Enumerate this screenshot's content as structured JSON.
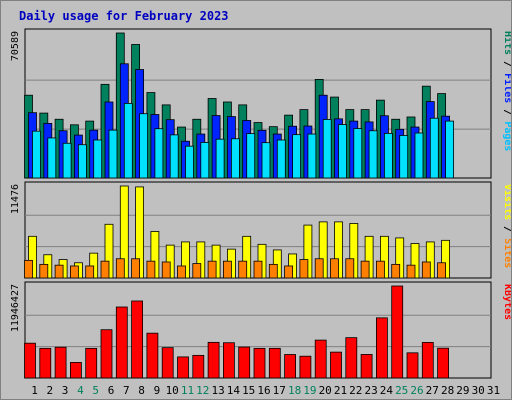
{
  "chart_data": [
    {
      "type": "bar",
      "title": "Daily usage for February 2023",
      "categories": [
        "1",
        "2",
        "3",
        "4",
        "5",
        "6",
        "7",
        "8",
        "9",
        "10",
        "11",
        "12",
        "13",
        "14",
        "15",
        "16",
        "17",
        "18",
        "19",
        "20",
        "21",
        "22",
        "23",
        "24",
        "25",
        "26",
        "27",
        "28",
        "29",
        "30",
        "31"
      ],
      "weekend_categories": [
        "4",
        "5",
        "11",
        "12",
        "18",
        "19",
        "25",
        "26"
      ],
      "ylabel_max": "70589",
      "ymax": 70589,
      "series": [
        {
          "name": "Hits",
          "color": "#00805c",
          "values": [
            40300,
            31600,
            28600,
            25900,
            27700,
            45600,
            70589,
            65000,
            41600,
            35600,
            24800,
            28600,
            38700,
            37000,
            35600,
            27000,
            25000,
            30600,
            33300,
            48000,
            39400,
            33300,
            33300,
            37900,
            28600,
            29700,
            44700,
            41100,
            0,
            0,
            0
          ]
        },
        {
          "name": "Files",
          "color": "#0024ff",
          "values": [
            31800,
            26600,
            23000,
            20900,
            23300,
            37000,
            55600,
            52800,
            30900,
            28400,
            17900,
            21400,
            30400,
            29900,
            28000,
            23200,
            21400,
            25200,
            25300,
            40300,
            28800,
            27700,
            27300,
            30300,
            23700,
            24800,
            37200,
            30100,
            0,
            0,
            0
          ]
        },
        {
          "name": "Pages",
          "color": "#00e0ff",
          "values": [
            22800,
            19500,
            16900,
            16200,
            18500,
            23300,
            36300,
            31300,
            24000,
            21000,
            15500,
            17300,
            18900,
            19100,
            21600,
            17200,
            18500,
            21100,
            21400,
            28500,
            26000,
            24100,
            23000,
            21700,
            20700,
            21900,
            29100,
            27700,
            0,
            0,
            0
          ]
        }
      ],
      "legend": [
        "Pages",
        "Files",
        "Hits"
      ],
      "legend_colors": [
        "#00c0ff",
        "#0020ff",
        "#00805c"
      ]
    },
    {
      "type": "bar",
      "categories": [
        "1",
        "2",
        "3",
        "4",
        "5",
        "6",
        "7",
        "8",
        "9",
        "10",
        "11",
        "12",
        "13",
        "14",
        "15",
        "16",
        "17",
        "18",
        "19",
        "20",
        "21",
        "22",
        "23",
        "24",
        "25",
        "26",
        "27",
        "28",
        "29",
        "30",
        "31"
      ],
      "ylabel_max": "11476",
      "ymax": 11476,
      "series": [
        {
          "name": "Visits",
          "color": "#ffff00",
          "values": [
            5200,
            2900,
            2300,
            1900,
            3100,
            6700,
            11476,
            11360,
            5800,
            4100,
            4500,
            4500,
            4100,
            3600,
            5200,
            4200,
            3500,
            3000,
            6600,
            7000,
            7000,
            6800,
            5200,
            5200,
            5000,
            4300,
            4500,
            4700,
            0,
            0,
            0
          ]
        },
        {
          "name": "Sites",
          "color": "#ff8000",
          "values": [
            2200,
            1700,
            1600,
            1500,
            1500,
            2100,
            2400,
            2400,
            2100,
            2000,
            1500,
            1800,
            2100,
            2100,
            2100,
            2100,
            1700,
            1500,
            2300,
            2400,
            2400,
            2400,
            2100,
            2100,
            1700,
            1600,
            2000,
            1900,
            0,
            0,
            0
          ]
        }
      ],
      "legend": [
        "Sites",
        "Visits"
      ],
      "legend_colors": [
        "#ff8000",
        "#ffff00"
      ]
    },
    {
      "type": "bar",
      "categories": [
        "1",
        "2",
        "3",
        "4",
        "5",
        "6",
        "7",
        "8",
        "9",
        "10",
        "11",
        "12",
        "13",
        "14",
        "15",
        "16",
        "17",
        "18",
        "19",
        "20",
        "21",
        "22",
        "23",
        "24",
        "25",
        "26",
        "27",
        "28",
        "29",
        "30",
        "31"
      ],
      "ylabel_max": "11946427",
      "ymax": 11946427,
      "series": [
        {
          "name": "KBytes",
          "color": "#ff0000",
          "values": [
            4520000,
            3850000,
            4000000,
            2020000,
            3850000,
            6270000,
            9220000,
            10000000,
            5820000,
            3940000,
            2740000,
            2940000,
            4630000,
            4580000,
            4020000,
            3850000,
            3850000,
            3050000,
            2830000,
            4920000,
            3360000,
            5240000,
            3060000,
            7810000,
            11946427,
            3270000,
            4620000,
            3870000,
            0,
            0,
            0
          ]
        }
      ],
      "legend": [
        "KBytes"
      ],
      "legend_colors": [
        "#ff0000"
      ]
    }
  ]
}
